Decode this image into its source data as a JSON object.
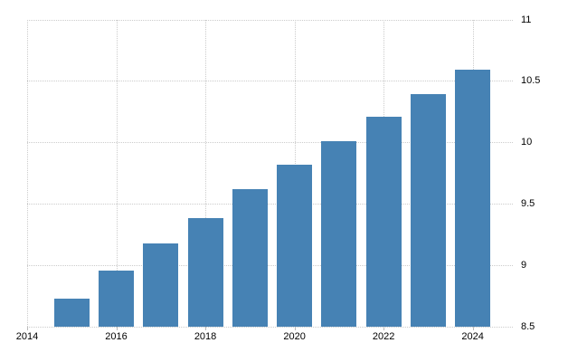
{
  "chart_data": {
    "type": "bar",
    "title": "",
    "xlabel": "",
    "ylabel": "",
    "x": [
      2015,
      2016,
      2017,
      2018,
      2019,
      2020,
      2021,
      2022,
      2023,
      2024
    ],
    "values": [
      8.73,
      8.96,
      9.18,
      9.38,
      9.62,
      9.82,
      10.01,
      10.21,
      10.39,
      10.59
    ],
    "series_name": "",
    "ylim": [
      8.5,
      11
    ],
    "xlim": [
      2014,
      2024.9
    ],
    "y_ticks": [
      8.5,
      9,
      9.5,
      10,
      10.5,
      11
    ],
    "y_tick_labels": [
      "8.5",
      "9",
      "9.5",
      "10",
      "10.5",
      "11"
    ],
    "x_ticks": [
      2014,
      2016,
      2018,
      2020,
      2022,
      2024
    ],
    "x_tick_labels": [
      "2014",
      "2016",
      "2018",
      "2020",
      "2022",
      "2024"
    ],
    "grid": "dotted, horizontal and vertical",
    "legend_position": "none",
    "colors": {
      "bar": "#4682b4",
      "gridline": "#cccccc",
      "tick": "#bbbbbb",
      "label": "#000000",
      "background": "#ffffff"
    }
  }
}
